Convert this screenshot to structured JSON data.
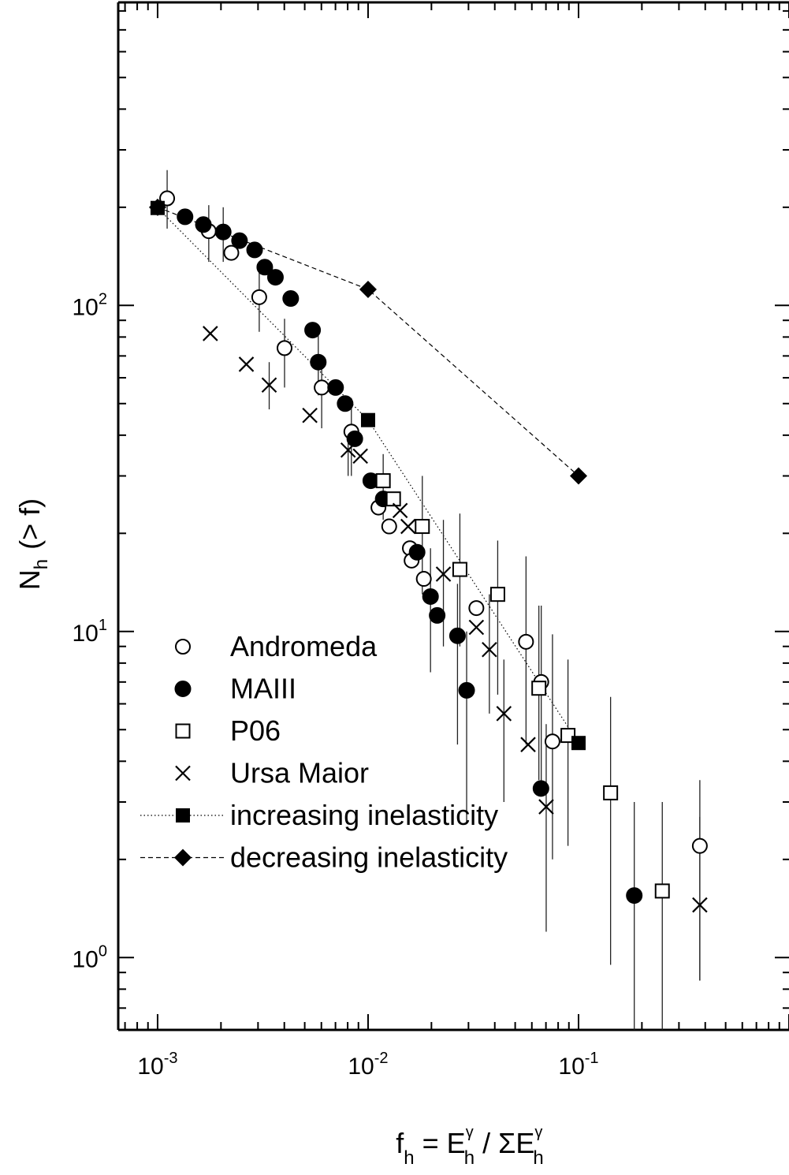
{
  "chart_data": {
    "type": "scatter",
    "title": "",
    "x_scale": "log",
    "y_scale": "log",
    "xlim": [
      0.00065,
      1.0
    ],
    "ylim": [
      0.6,
      850
    ],
    "x_ticks": [
      {
        "value": 0.001,
        "base": "10",
        "exp": "-3"
      },
      {
        "value": 0.01,
        "base": "10",
        "exp": "-2"
      },
      {
        "value": 0.1,
        "base": "10",
        "exp": "-1"
      }
    ],
    "y_ticks": [
      {
        "value": 1,
        "base": "10",
        "exp": "0"
      },
      {
        "value": 10,
        "base": "10",
        "exp": "1"
      },
      {
        "value": 100,
        "base": "10",
        "exp": "2"
      }
    ],
    "xlabel": {
      "f": "f",
      "h1": "h",
      "eq": "= E",
      "g1": "γ",
      "h2": "h",
      "div": "/ ΣE",
      "g2": "γ",
      "h3": "h"
    },
    "ylabel": {
      "N": "N",
      "h": "h",
      "rest": "(> f)"
    },
    "grid": false,
    "legend_position": "bottom-left",
    "legend": [
      {
        "series": "Andromeda",
        "label": "Andromeda"
      },
      {
        "series": "MAIII",
        "label": "MAIII"
      },
      {
        "series": "P06",
        "label": "P06"
      },
      {
        "series": "Ursa Maior",
        "label": "Ursa Maior"
      },
      {
        "series": "increasing inelasticity",
        "label": "increasing inelasticity"
      },
      {
        "series": "decreasing inelasticity",
        "label": "decreasing inelasticity"
      }
    ],
    "series": [
      {
        "name": "Andromeda",
        "marker": "open-circle",
        "points": [
          {
            "x": 0.00111,
            "y": 213,
            "lo": 172,
            "hi": 260
          },
          {
            "x": 0.00175,
            "y": 169,
            "lo": 136,
            "hi": 203
          },
          {
            "x": 0.00224,
            "y": 145
          },
          {
            "x": 0.00304,
            "y": 106,
            "lo": 83,
            "hi": 129
          },
          {
            "x": 0.00401,
            "y": 74,
            "lo": 56,
            "hi": 91
          },
          {
            "x": 0.00602,
            "y": 56,
            "lo": 42,
            "hi": 70
          },
          {
            "x": 0.00833,
            "y": 41,
            "lo": 30,
            "hi": 52
          },
          {
            "x": 0.0112,
            "y": 24
          },
          {
            "x": 0.0126,
            "y": 21
          },
          {
            "x": 0.0158,
            "y": 18
          },
          {
            "x": 0.0161,
            "y": 16.5
          },
          {
            "x": 0.0184,
            "y": 14.5
          },
          {
            "x": 0.0327,
            "y": 11.8
          },
          {
            "x": 0.0563,
            "y": 9.3,
            "lo": 4.5,
            "hi": 17
          },
          {
            "x": 0.0665,
            "y": 7.0,
            "lo": 3.2,
            "hi": 12
          },
          {
            "x": 0.0752,
            "y": 4.6,
            "lo": 2.0,
            "hi": 9.8
          },
          {
            "x": 0.377,
            "y": 2.2,
            "lo": 0.85,
            "hi": 3.5
          }
        ]
      },
      {
        "name": "MAIII",
        "marker": "filled-circle",
        "points": [
          {
            "x": 0.00135,
            "y": 187
          },
          {
            "x": 0.00165,
            "y": 177
          },
          {
            "x": 0.00205,
            "y": 168,
            "lo": 136,
            "hi": 200
          },
          {
            "x": 0.00245,
            "y": 158
          },
          {
            "x": 0.00289,
            "y": 148
          },
          {
            "x": 0.00323,
            "y": 131
          },
          {
            "x": 0.00363,
            "y": 122
          },
          {
            "x": 0.00429,
            "y": 105
          },
          {
            "x": 0.00545,
            "y": 84
          },
          {
            "x": 0.0058,
            "y": 67,
            "lo": 53,
            "hi": 83
          },
          {
            "x": 0.00701,
            "y": 56
          },
          {
            "x": 0.00778,
            "y": 50
          },
          {
            "x": 0.00865,
            "y": 39
          },
          {
            "x": 0.0103,
            "y": 29
          },
          {
            "x": 0.0118,
            "y": 25.5
          },
          {
            "x": 0.0171,
            "y": 17.5
          },
          {
            "x": 0.0198,
            "y": 12.8,
            "lo": 7.5,
            "hi": 18
          },
          {
            "x": 0.0213,
            "y": 11.2
          },
          {
            "x": 0.0266,
            "y": 9.7,
            "lo": 4.5,
            "hi": 14
          },
          {
            "x": 0.0294,
            "y": 6.6,
            "lo": 2.6,
            "hi": 10
          },
          {
            "x": 0.0663,
            "y": 3.3
          },
          {
            "x": 0.184,
            "y": 1.55,
            "lo": 0.6,
            "hi": 3.0
          }
        ]
      },
      {
        "name": "P06",
        "marker": "open-square",
        "points": [
          {
            "x": 0.0118,
            "y": 29,
            "lo": 22,
            "hi": 35
          },
          {
            "x": 0.0132,
            "y": 25.5
          },
          {
            "x": 0.0181,
            "y": 21,
            "lo": 13,
            "hi": 30
          },
          {
            "x": 0.0273,
            "y": 15.5,
            "lo": 9,
            "hi": 23
          },
          {
            "x": 0.0413,
            "y": 13,
            "lo": 6.4,
            "hi": 19
          },
          {
            "x": 0.0648,
            "y": 6.7,
            "lo": 3.5,
            "hi": 12
          },
          {
            "x": 0.0891,
            "y": 4.8,
            "lo": 2.2,
            "hi": 8.2
          },
          {
            "x": 0.142,
            "y": 3.2,
            "lo": 0.95,
            "hi": 6.3
          },
          {
            "x": 0.25,
            "y": 1.6,
            "lo": 0.6,
            "hi": 3.0
          }
        ]
      },
      {
        "name": "Ursa Maior",
        "marker": "cross",
        "points": [
          {
            "x": 0.00178,
            "y": 82
          },
          {
            "x": 0.00264,
            "y": 66
          },
          {
            "x": 0.00339,
            "y": 57,
            "lo": 48,
            "hi": 67
          },
          {
            "x": 0.00529,
            "y": 46
          },
          {
            "x": 0.00804,
            "y": 36,
            "lo": 30,
            "hi": 43
          },
          {
            "x": 0.00919,
            "y": 34.5
          },
          {
            "x": 0.0142,
            "y": 23.5
          },
          {
            "x": 0.0155,
            "y": 21
          },
          {
            "x": 0.0228,
            "y": 15,
            "lo": 9,
            "hi": 22
          },
          {
            "x": 0.0327,
            "y": 10.3
          },
          {
            "x": 0.0377,
            "y": 8.8,
            "lo": 5.6,
            "hi": 13
          },
          {
            "x": 0.0442,
            "y": 5.6,
            "lo": 3.0,
            "hi": 8.2
          },
          {
            "x": 0.0576,
            "y": 4.5
          },
          {
            "x": 0.0702,
            "y": 2.9,
            "lo": 1.2,
            "hi": 5.2
          },
          {
            "x": 0.377,
            "y": 1.45,
            "lo": 0.85,
            "hi": 2.7
          }
        ]
      },
      {
        "name": "increasing inelasticity",
        "marker": "filled-square",
        "line": "dotted",
        "points": [
          {
            "x": 0.001,
            "y": 199
          },
          {
            "x": 0.01,
            "y": 44.5
          },
          {
            "x": 0.1,
            "y": 4.55
          }
        ]
      },
      {
        "name": "decreasing inelasticity",
        "marker": "filled-diamond",
        "line": "dashed",
        "points": [
          {
            "x": 0.001,
            "y": 200
          },
          {
            "x": 0.01,
            "y": 112
          },
          {
            "x": 0.1,
            "y": 30
          }
        ]
      }
    ]
  }
}
